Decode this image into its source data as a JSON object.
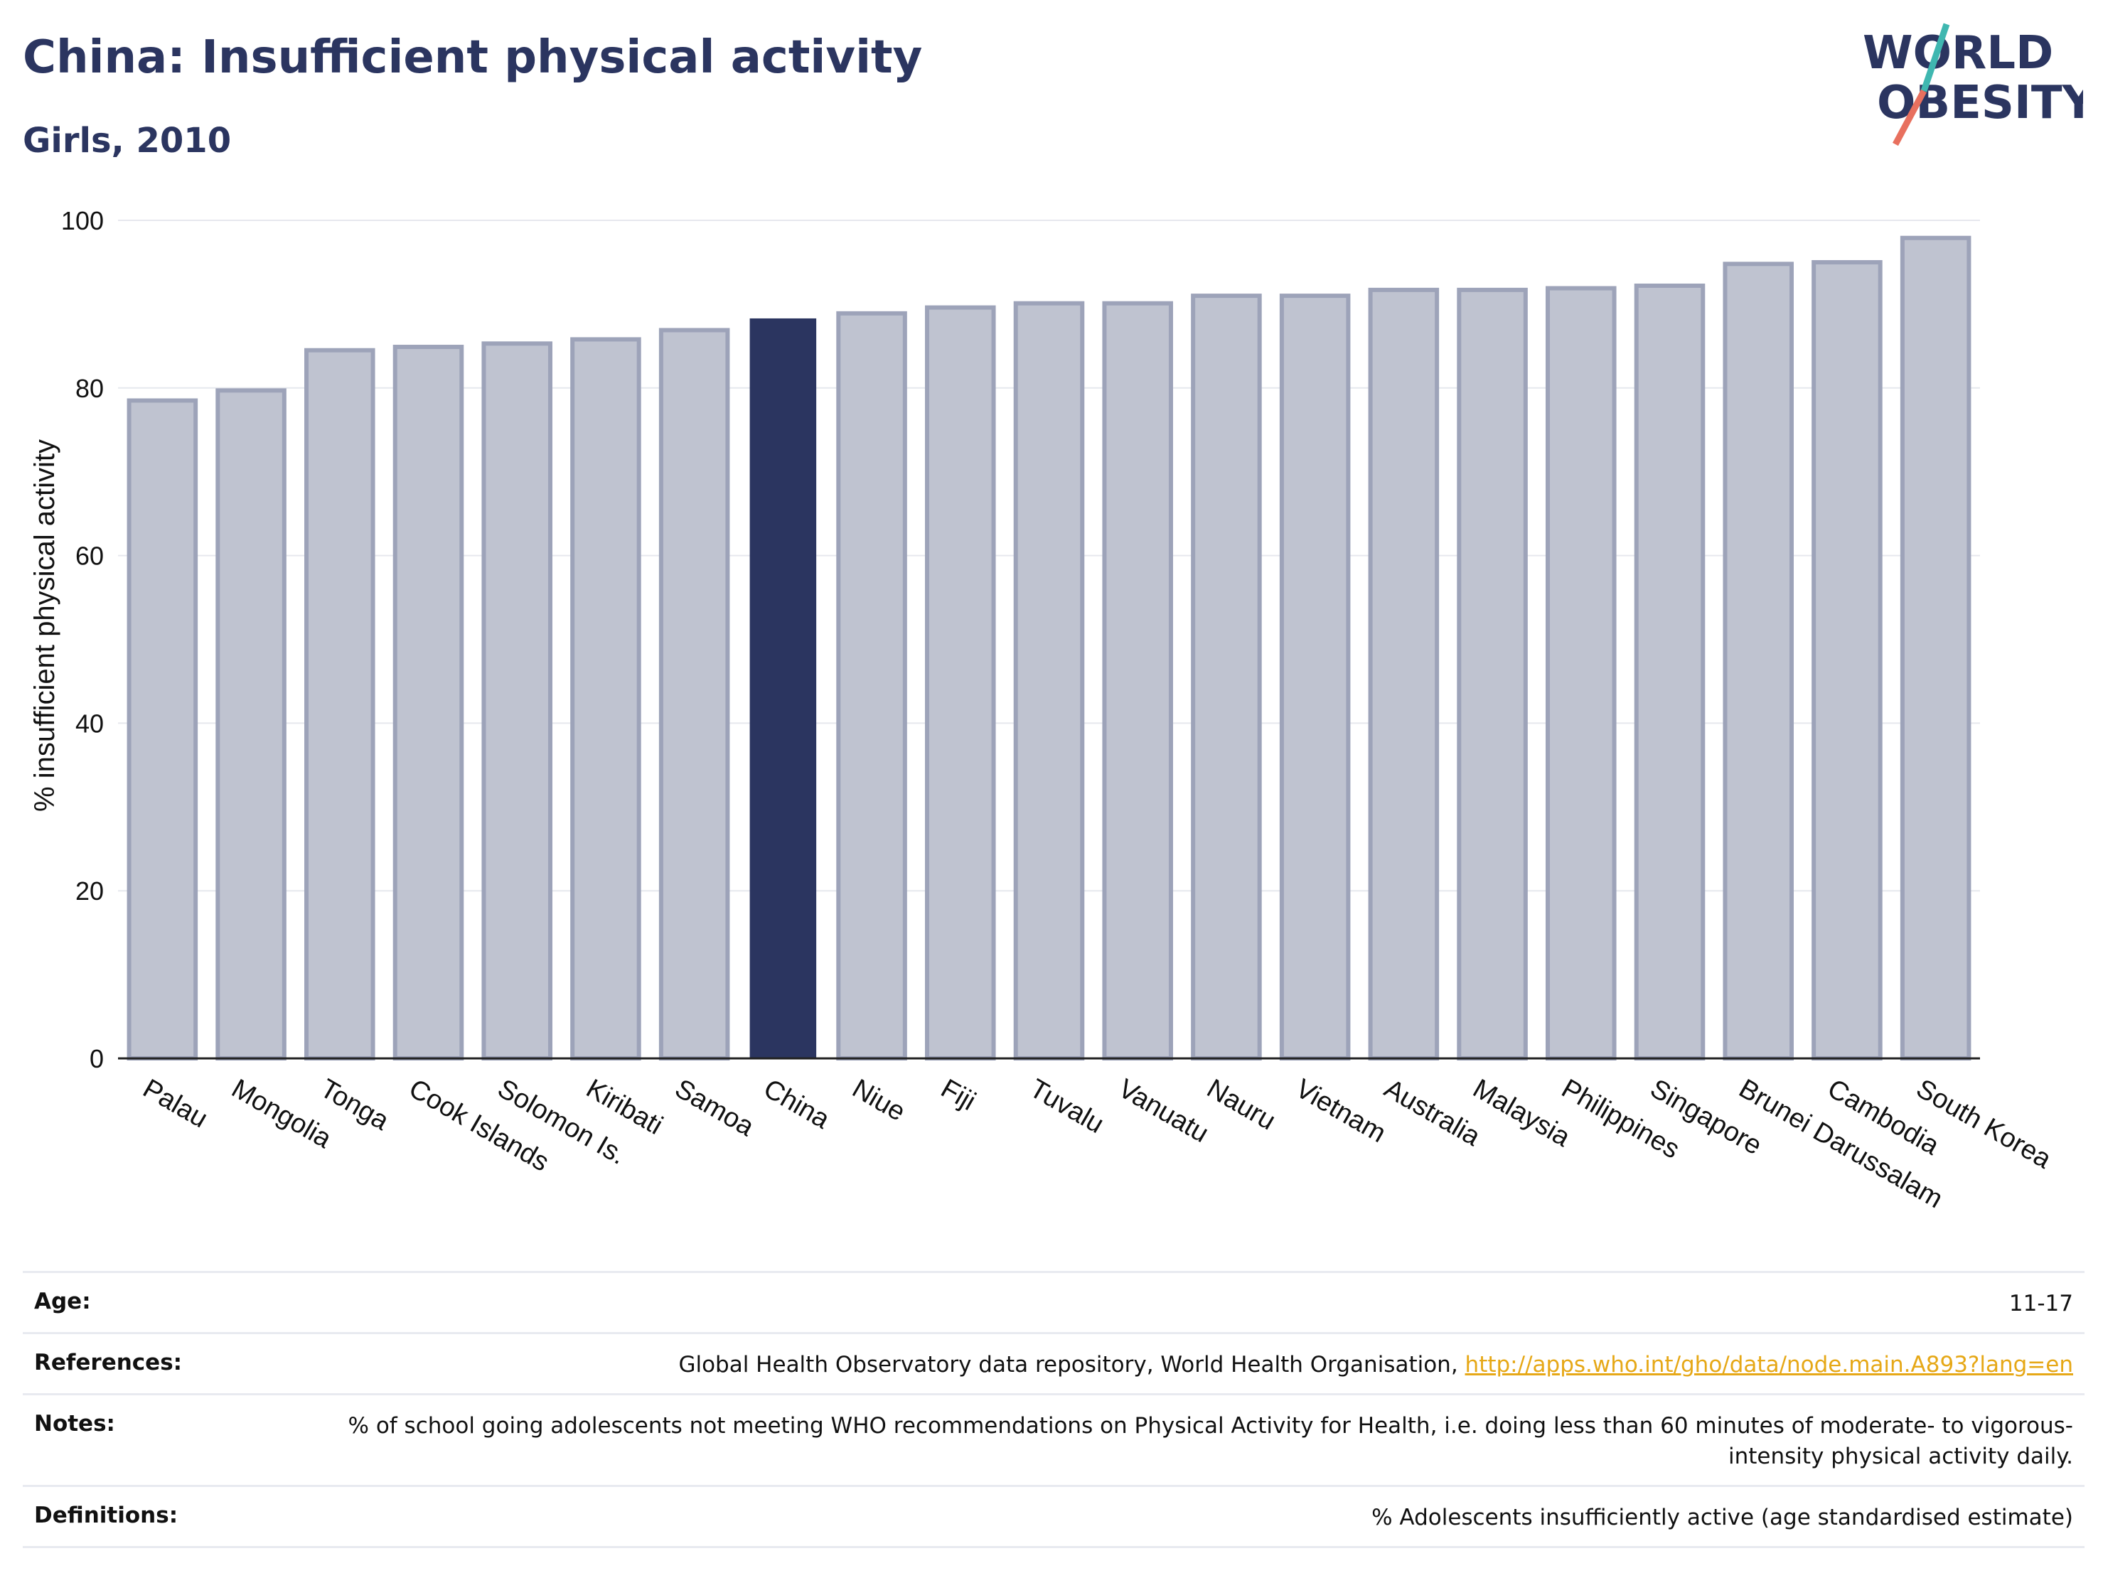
{
  "header": {
    "title": "China: Insufficient physical activity",
    "subtitle": "Girls, 2010"
  },
  "logo": {
    "line1": "WORLD",
    "line2": "OBESITY"
  },
  "chart_data": {
    "type": "bar",
    "ylabel": "% insufficient physical activity",
    "xlabel": "",
    "ylim": [
      0,
      100
    ],
    "yticks": [
      0,
      20,
      40,
      60,
      80,
      100
    ],
    "grid": true,
    "highlight": "China",
    "categories": [
      "Palau",
      "Mongolia",
      "Tonga",
      "Cook Islands",
      "Solomon Is.",
      "Kiribati",
      "Samoa",
      "China",
      "Niue",
      "Fiji",
      "Tuvalu",
      "Vanuatu",
      "Nauru",
      "Vietnam",
      "Australia",
      "Malaysia",
      "Philippines",
      "Singapore",
      "Brunei Darussalam",
      "Cambodia",
      "South Korea"
    ],
    "values": [
      78.5,
      79.7,
      84.5,
      84.9,
      85.3,
      85.8,
      86.9,
      88.3,
      88.9,
      89.6,
      90.1,
      90.1,
      91.0,
      91.0,
      91.7,
      91.7,
      91.9,
      92.2,
      94.8,
      95.0,
      97.9
    ],
    "colors": {
      "bar": "#bfc3d0",
      "bar_edge": "#9da3b9",
      "highlight": "#2b3560"
    }
  },
  "info": {
    "age_label": "Age:",
    "age_value": "11-17",
    "references_label": "References:",
    "references_text": "Global Health Observatory data repository, World Health Organisation, ",
    "references_link": "http://apps.who.int/gho/data/node.main.A893?lang=en",
    "notes_label": "Notes:",
    "notes_value": "% of school going adolescents not meeting WHO recommendations on Physical Activity for Health, i.e. doing less than 60 minutes of moderate- to vigorous-intensity physical activity daily.",
    "definitions_label": "Definitions:",
    "definitions_value": "% Adolescents insufficiently active (age standardised estimate)"
  }
}
